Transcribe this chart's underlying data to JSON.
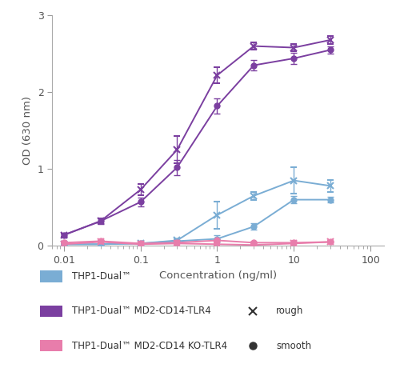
{
  "x": [
    0.01,
    0.03,
    0.1,
    0.3,
    1,
    3,
    10,
    30
  ],
  "thp1_rough_y": [
    0.02,
    0.02,
    0.03,
    0.07,
    0.4,
    0.65,
    0.85,
    0.78
  ],
  "thp1_rough_err": [
    0.01,
    0.01,
    0.01,
    0.02,
    0.18,
    0.05,
    0.17,
    0.08
  ],
  "thp1_smooth_y": [
    0.02,
    0.02,
    0.03,
    0.06,
    0.09,
    0.25,
    0.6,
    0.6
  ],
  "thp1_smooth_err": [
    0.01,
    0.01,
    0.01,
    0.02,
    0.05,
    0.04,
    0.05,
    0.04
  ],
  "md2_rough_y": [
    0.14,
    0.32,
    0.73,
    1.25,
    2.22,
    2.6,
    2.58,
    2.68
  ],
  "md2_rough_err": [
    0.02,
    0.04,
    0.07,
    0.18,
    0.1,
    0.05,
    0.05,
    0.05
  ],
  "md2_smooth_y": [
    0.14,
    0.32,
    0.57,
    1.02,
    1.82,
    2.35,
    2.44,
    2.55
  ],
  "md2_smooth_err": [
    0.02,
    0.04,
    0.06,
    0.1,
    0.1,
    0.07,
    0.07,
    0.05
  ],
  "ko_rough_y": [
    0.02,
    0.05,
    0.02,
    0.03,
    0.02,
    0.01,
    0.03,
    0.05
  ],
  "ko_rough_err": [
    0.01,
    0.01,
    0.01,
    0.01,
    0.01,
    0.01,
    0.01,
    0.01
  ],
  "ko_smooth_y": [
    0.04,
    0.06,
    0.03,
    0.04,
    0.07,
    0.04,
    0.04,
    0.05
  ],
  "ko_smooth_err": [
    0.01,
    0.01,
    0.01,
    0.01,
    0.02,
    0.01,
    0.01,
    0.01
  ],
  "color_thp1": "#7aadd4",
  "color_md2": "#7b3fa0",
  "color_ko": "#e87dab",
  "ylabel": "OD (630 nm)",
  "xlabel": "Concentration (ng/ml)",
  "ylim": [
    0,
    3
  ],
  "yticks": [
    0,
    1,
    2,
    3
  ],
  "legend_labels": [
    "THP1-Dual™",
    "THP1-Dual™ MD2-CD14-TLR4",
    "THP1-Dual™ MD2-CD14 KO-TLR4"
  ],
  "legend_rough": "rough",
  "legend_smooth": "smooth",
  "bg_color": "#ffffff",
  "xlim_left": 0.007,
  "xlim_right": 150
}
